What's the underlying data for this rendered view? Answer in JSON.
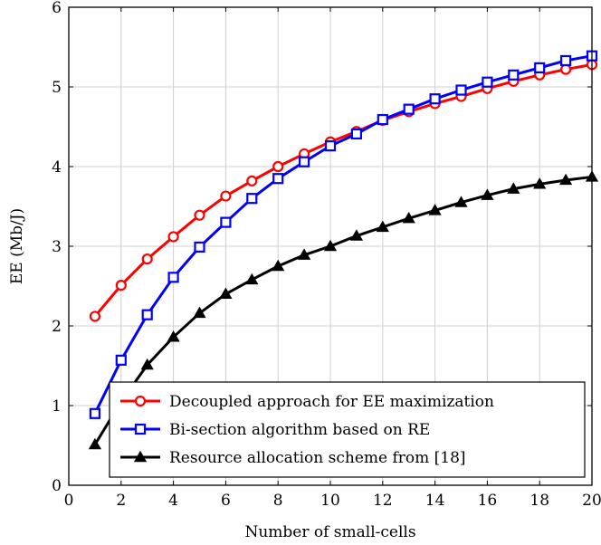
{
  "chart_data": {
    "type": "line",
    "xlabel": "Number of small-cells",
    "ylabel": "EE (Mb/J)",
    "xlim": [
      0,
      20
    ],
    "ylim": [
      0,
      6
    ],
    "xticks": [
      "0",
      "2",
      "4",
      "6",
      "8",
      "10",
      "12",
      "14",
      "16",
      "18",
      "20"
    ],
    "yticks": [
      "0",
      "1",
      "2",
      "3",
      "4",
      "5",
      "6"
    ],
    "grid": true,
    "legend_position": "bottom-right",
    "x": [
      1,
      2,
      3,
      4,
      5,
      6,
      7,
      8,
      9,
      10,
      11,
      12,
      13,
      14,
      15,
      16,
      17,
      18,
      19,
      20
    ],
    "series": [
      {
        "name": "Decoupled approach for EE maximization",
        "color": "#ff0000",
        "marker": "circle",
        "values": [
          2.12,
          2.51,
          2.84,
          3.12,
          3.39,
          3.63,
          3.82,
          4.0,
          4.16,
          4.31,
          4.44,
          4.58,
          4.69,
          4.79,
          4.88,
          4.98,
          5.07,
          5.15,
          5.22,
          5.28
        ]
      },
      {
        "name": "Bi-section algorithm based on RE",
        "color": "#0000ff",
        "marker": "square",
        "values": [
          0.9,
          1.57,
          2.14,
          2.61,
          2.99,
          3.3,
          3.6,
          3.85,
          4.06,
          4.26,
          4.41,
          4.59,
          4.72,
          4.85,
          4.96,
          5.06,
          5.15,
          5.24,
          5.33,
          5.39
        ]
      },
      {
        "name": "Resource allocation scheme from [18]",
        "color": "#000000",
        "marker": "triangle",
        "values": [
          0.51,
          1.05,
          1.51,
          1.86,
          2.16,
          2.4,
          2.58,
          2.75,
          2.89,
          3.0,
          3.13,
          3.24,
          3.35,
          3.45,
          3.55,
          3.64,
          3.72,
          3.78,
          3.83,
          3.87
        ]
      }
    ]
  }
}
